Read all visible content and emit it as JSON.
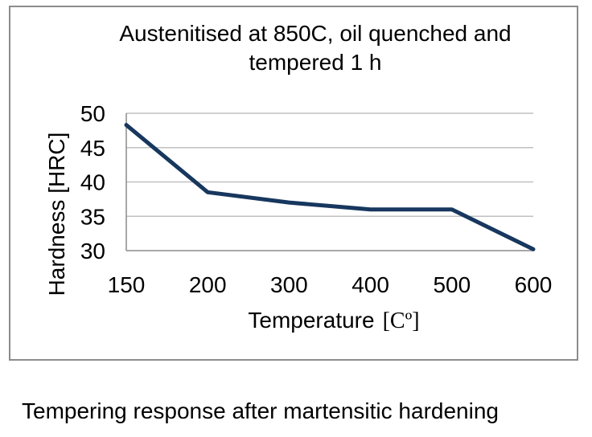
{
  "chart_data": {
    "type": "line",
    "title_lines": [
      "Austenitised at 850C, oil quenched and",
      "tempered 1 h"
    ],
    "xlabel": "Temperature",
    "xlabel_unit": "[Cº]",
    "ylabel": "Hardness [HRC]",
    "categories": [
      "150",
      "200",
      "300",
      "400",
      "500",
      "600"
    ],
    "series": [
      {
        "values": [
          48.3,
          38.5,
          37.0,
          36.0,
          36.0,
          30.2
        ]
      }
    ],
    "ylim": [
      30,
      50
    ],
    "yticks": [
      "30",
      "35",
      "40",
      "45",
      "50"
    ],
    "grid": "horizontal",
    "legend": "none",
    "colors": {
      "line": "#17375e",
      "grid": "#c0c0c0",
      "axis": "#8c8c8c"
    }
  },
  "caption": "Tempering response after martensitic hardening"
}
